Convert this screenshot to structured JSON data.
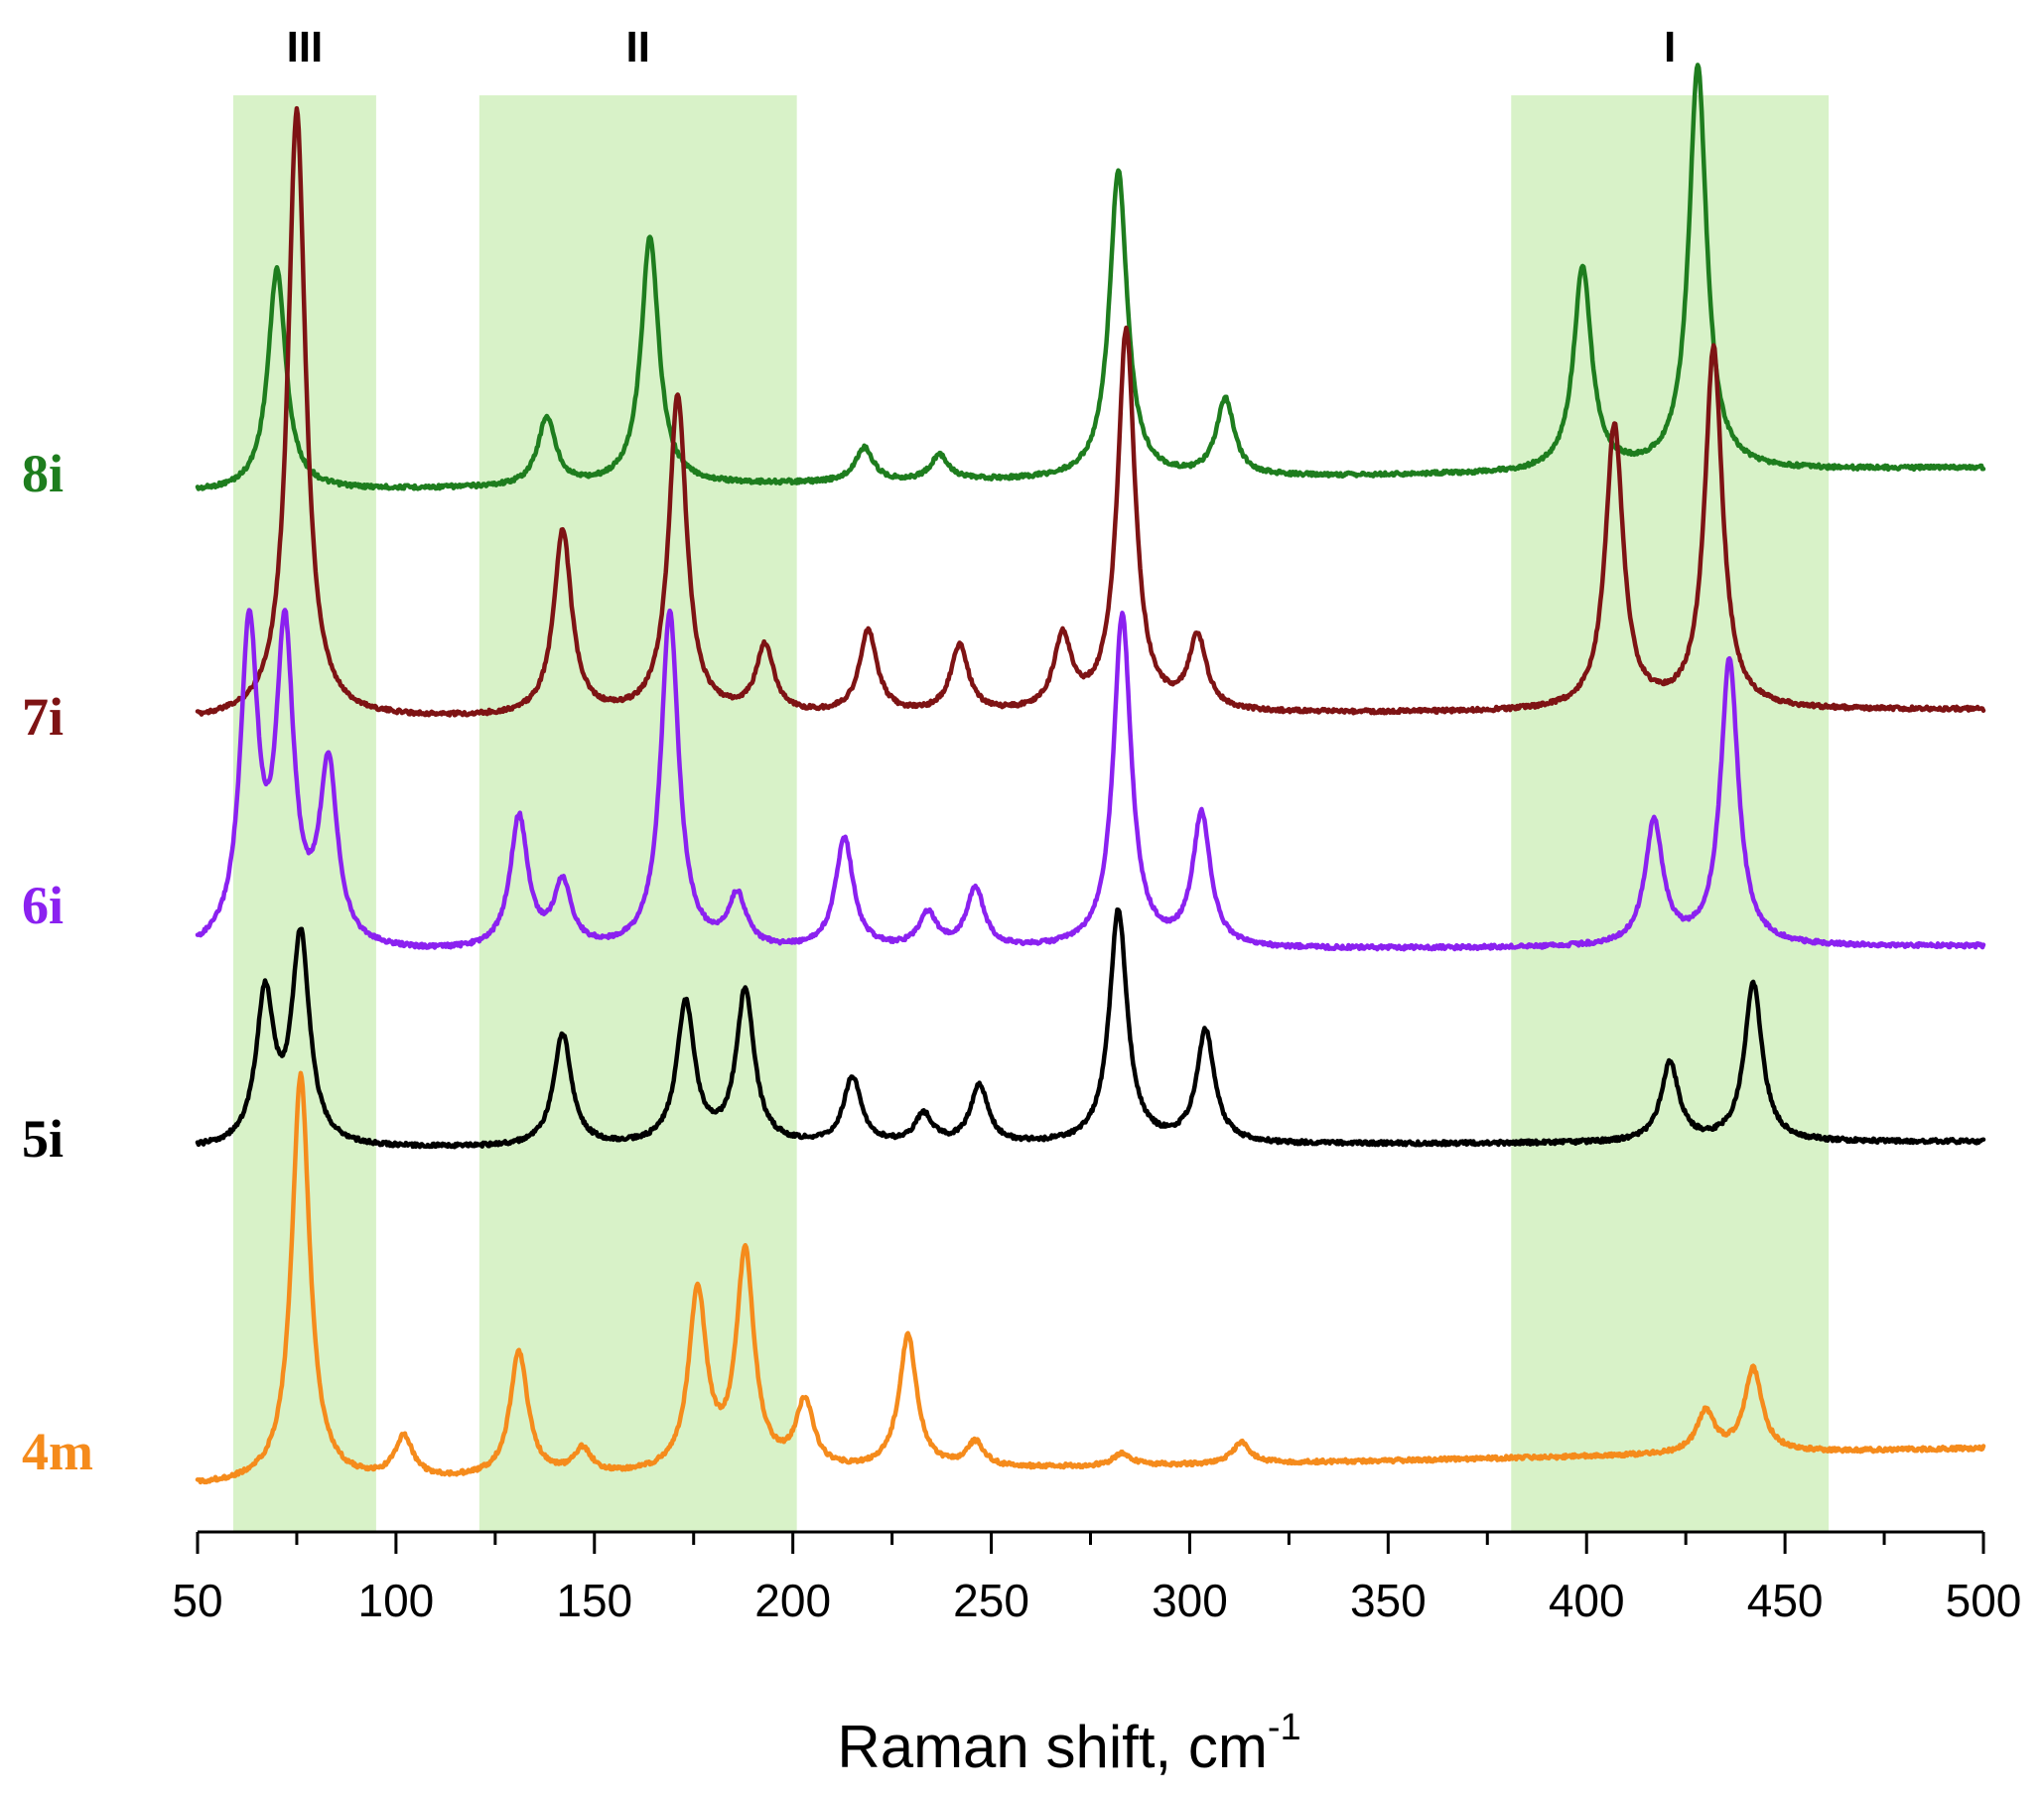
{
  "chart_data": {
    "type": "line",
    "title": "",
    "xlabel": "Raman shift, cm",
    "xlabel_superscript": "-1",
    "ylabel": "",
    "xlim": [
      50,
      500
    ],
    "x_ticks": [
      50,
      100,
      150,
      200,
      250,
      300,
      350,
      400,
      450,
      500
    ],
    "grid": false,
    "highlight_color": "#d8f2c8",
    "regions": [
      {
        "label": "III",
        "x_range": [
          59,
          95
        ]
      },
      {
        "label": "II",
        "x_range": [
          121,
          201
        ]
      },
      {
        "label": "I",
        "x_range": [
          381,
          461
        ]
      }
    ],
    "series": [
      {
        "name": "8i",
        "color": "#1e7d1e",
        "baseline": 0.0,
        "peak_width": 2.7,
        "peaks": [
          {
            "x": 70,
            "h": 0.52
          },
          {
            "x": 138,
            "h": 0.16
          },
          {
            "x": 164,
            "h": 0.58
          },
          {
            "x": 218,
            "h": 0.08
          },
          {
            "x": 237,
            "h": 0.06
          },
          {
            "x": 282,
            "h": 0.72
          },
          {
            "x": 309,
            "h": 0.18
          },
          {
            "x": 399,
            "h": 0.48
          },
          {
            "x": 428,
            "h": 0.95
          }
        ]
      },
      {
        "name": "7i",
        "color": "#7e1314",
        "baseline": 0.0,
        "peak_width": 2.7,
        "peaks": [
          {
            "x": 75,
            "h": 1.18
          },
          {
            "x": 142,
            "h": 0.36
          },
          {
            "x": 171,
            "h": 0.62
          },
          {
            "x": 193,
            "h": 0.13
          },
          {
            "x": 219,
            "h": 0.16
          },
          {
            "x": 242,
            "h": 0.13
          },
          {
            "x": 268,
            "h": 0.14
          },
          {
            "x": 284,
            "h": 0.74
          },
          {
            "x": 302,
            "h": 0.14
          },
          {
            "x": 407,
            "h": 0.55
          },
          {
            "x": 432,
            "h": 0.7
          }
        ]
      },
      {
        "name": "6i",
        "color": "#8b21f0",
        "baseline": 0.0,
        "peak_width": 2.7,
        "peaks": [
          {
            "x": 63,
            "h": 0.74
          },
          {
            "x": 72,
            "h": 0.72
          },
          {
            "x": 83,
            "h": 0.42
          },
          {
            "x": 131,
            "h": 0.31
          },
          {
            "x": 142,
            "h": 0.15
          },
          {
            "x": 169,
            "h": 0.79
          },
          {
            "x": 186,
            "h": 0.12
          },
          {
            "x": 213,
            "h": 0.26
          },
          {
            "x": 234,
            "h": 0.08
          },
          {
            "x": 246,
            "h": 0.14
          },
          {
            "x": 283,
            "h": 0.78
          },
          {
            "x": 303,
            "h": 0.31
          },
          {
            "x": 417,
            "h": 0.29
          },
          {
            "x": 436,
            "h": 0.67
          }
        ]
      },
      {
        "name": "5i",
        "color": "#000000",
        "baseline": 0.0,
        "peak_width": 2.7,
        "peaks": [
          {
            "x": 67,
            "h": 0.36
          },
          {
            "x": 76,
            "h": 0.5
          },
          {
            "x": 142,
            "h": 0.27
          },
          {
            "x": 173,
            "h": 0.34
          },
          {
            "x": 188,
            "h": 0.37
          },
          {
            "x": 215,
            "h": 0.16
          },
          {
            "x": 233,
            "h": 0.07
          },
          {
            "x": 247,
            "h": 0.14
          },
          {
            "x": 282,
            "h": 0.56
          },
          {
            "x": 304,
            "h": 0.27
          },
          {
            "x": 421,
            "h": 0.19
          },
          {
            "x": 442,
            "h": 0.38
          }
        ]
      },
      {
        "name": "4m",
        "color": "#f58b1c",
        "baseline": 0.0,
        "peak_width": 2.7,
        "peaks": [
          {
            "x": 76,
            "h": 0.98
          },
          {
            "x": 102,
            "h": 0.1
          },
          {
            "x": 131,
            "h": 0.3
          },
          {
            "x": 147,
            "h": 0.06
          },
          {
            "x": 176,
            "h": 0.43
          },
          {
            "x": 188,
            "h": 0.52
          },
          {
            "x": 203,
            "h": 0.16
          },
          {
            "x": 229,
            "h": 0.32
          },
          {
            "x": 246,
            "h": 0.06
          },
          {
            "x": 283,
            "h": 0.03
          },
          {
            "x": 313,
            "h": 0.05
          },
          {
            "x": 430,
            "h": 0.1
          },
          {
            "x": 442,
            "h": 0.2
          }
        ]
      }
    ]
  }
}
